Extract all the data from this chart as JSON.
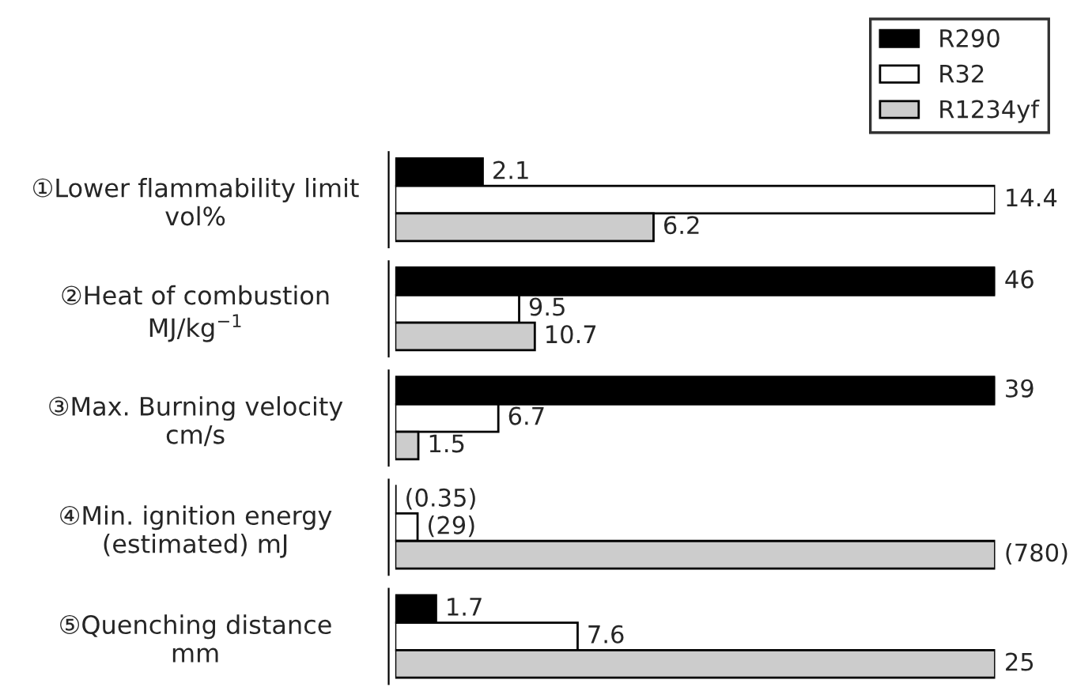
{
  "chart_data": [
    {
      "type": "bar",
      "orientation": "horizontal",
      "legend": "top right",
      "tick_labels": "y",
      "data_labels": true,
      "categories": [
        "①Lower flammability limit\nvol%"
      ],
      "series": [
        {
          "name": "R290",
          "color": "#000000",
          "values": [
            2.1
          ]
        },
        {
          "name": "R32",
          "color": "#ffffff",
          "values": [
            14.4
          ]
        },
        {
          "name": "R1234yf",
          "color": "#cccccc",
          "values": [
            6.2
          ]
        }
      ]
    },
    {
      "type": "bar",
      "orientation": "horizontal",
      "tick_labels": "y",
      "data_labels": true,
      "categories": [
        "②Heat of combustion\nMJ/kg$^{−1}$"
      ],
      "series": [
        {
          "color": "#000000",
          "values": [
            46
          ]
        },
        {
          "color": "#ffffff",
          "values": [
            9.5
          ]
        },
        {
          "color": "#cccccc",
          "values": [
            10.7
          ]
        }
      ]
    },
    {
      "type": "bar",
      "orientation": "horizontal",
      "tick_labels": "y",
      "data_labels": true,
      "categories": [
        "③Max. Burning velocity\ncm/s"
      ],
      "series": [
        {
          "color": "#000000",
          "values": [
            39
          ]
        },
        {
          "color": "#ffffff",
          "values": [
            6.7
          ]
        },
        {
          "color": "#cccccc",
          "values": [
            1.5
          ]
        }
      ]
    },
    {
      "type": "bar",
      "orientation": "horizontal",
      "tick_labels": "y",
      "categories": [
        "④Min. ignition energy\n(estimated) mJ"
      ],
      "series": [
        {
          "color": "#000000",
          "values": [
            0.35
          ],
          "value_labels": [
            "(0.35)"
          ]
        },
        {
          "color": "#ffffff",
          "values": [
            29
          ],
          "value_labels": [
            "(29)"
          ]
        },
        {
          "color": "#cccccc",
          "values": [
            780
          ],
          "value_labels": [
            "(780)"
          ]
        }
      ]
    },
    {
      "type": "bar",
      "orientation": "horizontal",
      "tick_labels": "y",
      "data_labels": true,
      "categories": [
        "⑤Quenching distance\nmm"
      ],
      "series": [
        {
          "color": "#000000",
          "values": [
            1.7
          ]
        },
        {
          "color": "#ffffff",
          "values": [
            7.6
          ]
        },
        {
          "color": "#cccccc",
          "values": [
            25
          ]
        }
      ]
    }
  ]
}
